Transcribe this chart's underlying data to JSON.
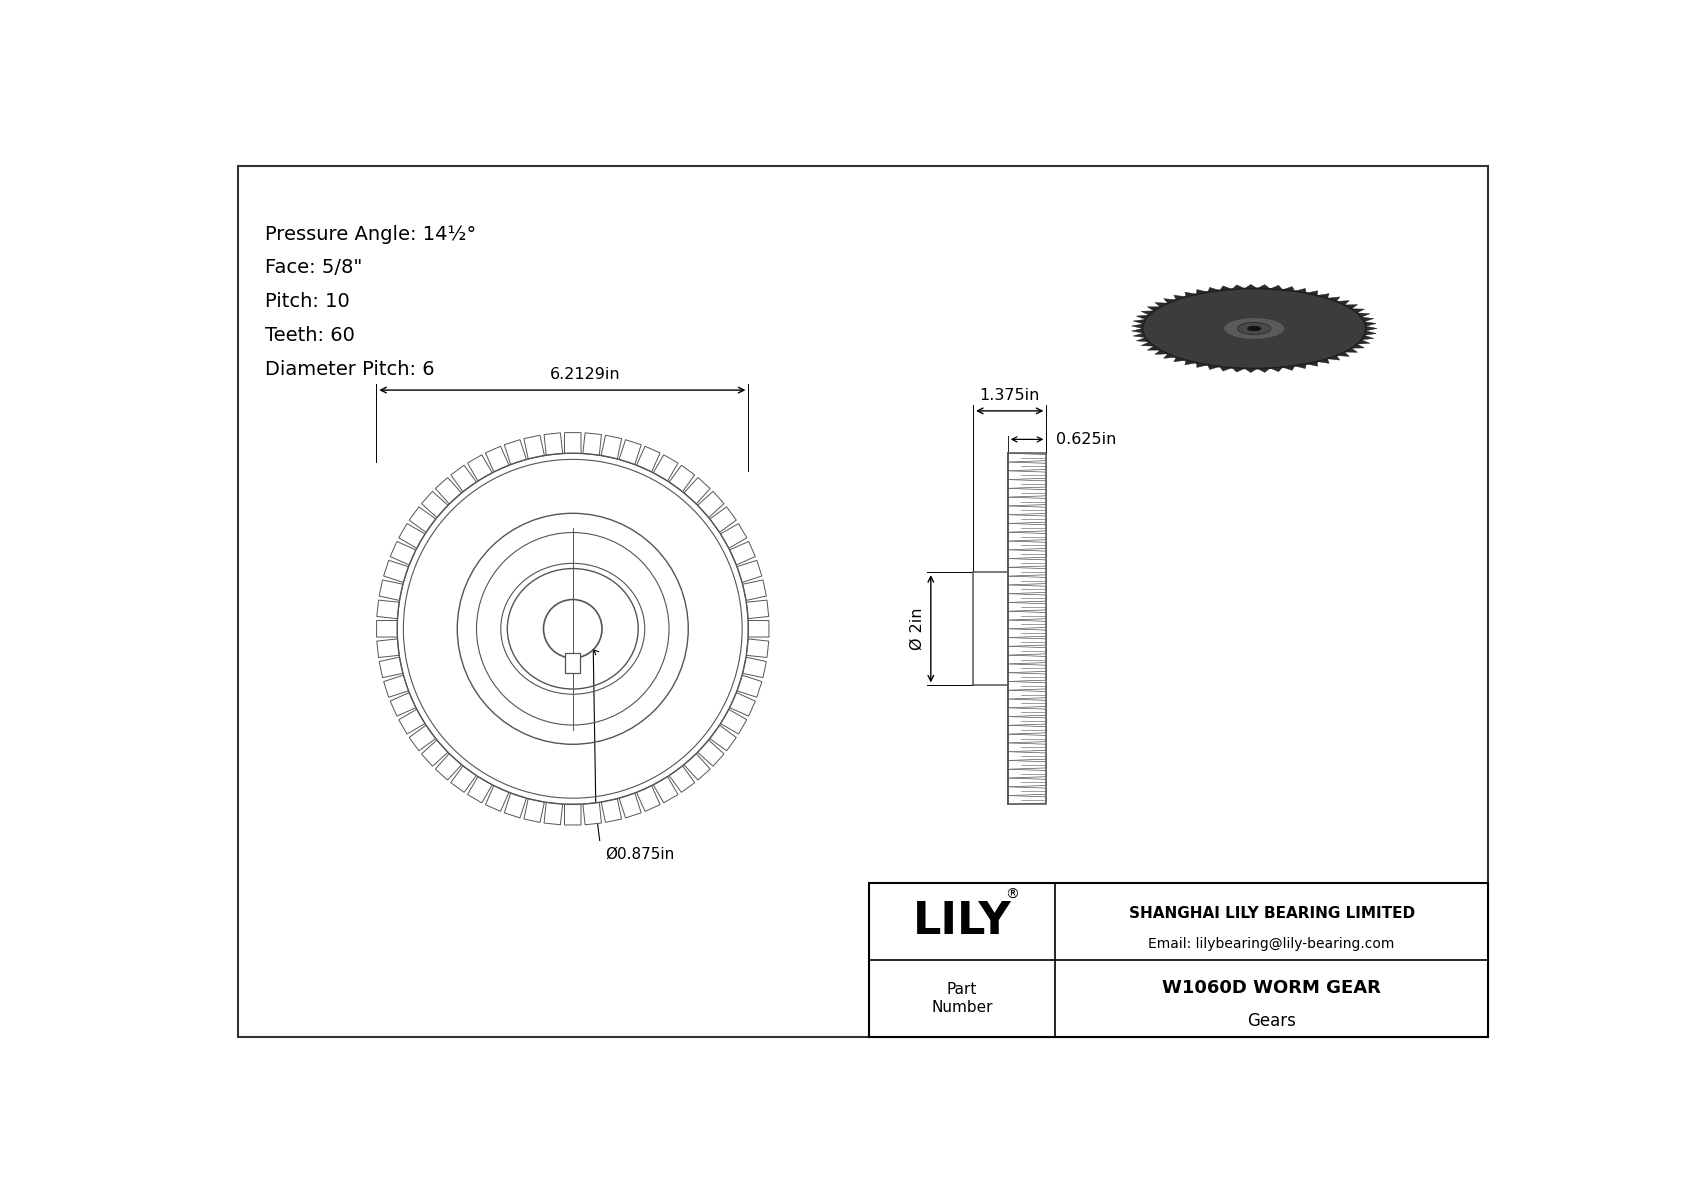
{
  "spec_lines": [
    "Pressure Angle: 14½°",
    "Face: 5/8\"",
    "Pitch: 10",
    "Teeth: 60",
    "Diameter Pitch: 6"
  ],
  "dim_6_2129": "6.2129in",
  "dim_0_875": "Ø0.875in",
  "dim_1_375": "1.375in",
  "dim_0_625": "0.625in",
  "dim_2": "Ø 2in",
  "company_name": "LILY",
  "company_reg": "®",
  "company_line1": "SHANGHAI LILY BEARING LIMITED",
  "company_line2": "Email: lilybearing@lily-bearing.com",
  "part_label": "Part\nNumber",
  "part_name": "W1060D WORM GEAR",
  "part_cat": "Gears",
  "lc": "#555555",
  "dc": "#222222"
}
